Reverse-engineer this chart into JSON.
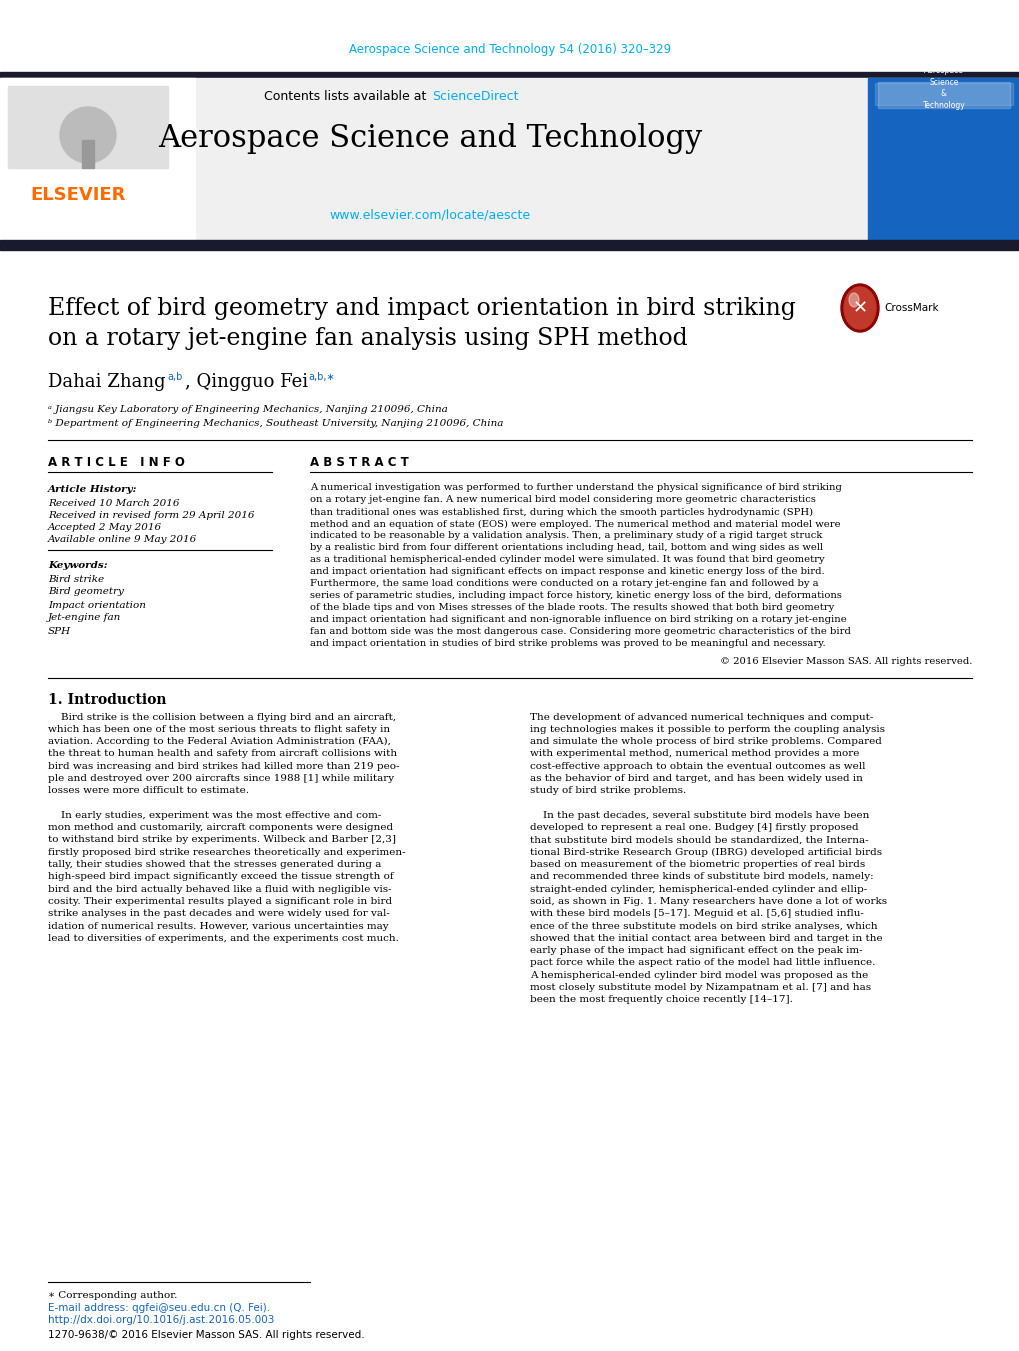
{
  "journal_ref": "Aerospace Science and Technology 54 (2016) 320–329",
  "journal_ref_color": "#00AEEF",
  "contents_text": "Contents lists available at ",
  "sciencedirect_text": "ScienceDirect",
  "sciencedirect_color": "#00AEEF",
  "journal_title": "Aerospace Science and Technology",
  "journal_url": "www.elsevier.com/locate/aescte",
  "journal_url_color": "#00AEEF",
  "paper_title_line1": "Effect of bird geometry and impact orientation in bird striking",
  "paper_title_line2": "on a rotary jet-engine fan analysis using SPH method",
  "affil_a": "ᵃ Jiangsu Key Laboratory of Engineering Mechanics, Nanjing 210096, China",
  "affil_b": "ᵇ Department of Engineering Mechanics, Southeast University, Nanjing 210096, China",
  "article_info_title": "A R T I C L E   I N F O",
  "abstract_title": "A B S T R A C T",
  "article_history_title": "Article History:",
  "received": "Received 10 March 2016",
  "revised": "Received in revised form 29 April 2016",
  "accepted": "Accepted 2 May 2016",
  "available": "Available online 9 May 2016",
  "keywords_title": "Keywords:",
  "keywords": [
    "Bird strike",
    "Bird geometry",
    "Impact orientation",
    "Jet-engine fan",
    "SPH"
  ],
  "copyright": "© 2016 Elsevier Masson SAS. All rights reserved.",
  "intro_title": "1. Introduction",
  "footnote_star": "∗ Corresponding author.",
  "footnote_email": "E-mail address: qgfei@seu.edu.cn (Q. Fei).",
  "footnote_doi": "http://dx.doi.org/10.1016/j.ast.2016.05.003",
  "footnote_issn": "1270-9638/© 2016 Elsevier Masson SAS. All rights reserved.",
  "header_bg": "#f0f0f0",
  "dark_bar_color": "#1a1a2e",
  "blue_color": "#1565C0",
  "sidebar_bg": "#1565C0",
  "elsevier_orange": "#FF6B00",
  "crossmark_red": "#c0392b",
  "crossmark_dark": "#8b0000"
}
